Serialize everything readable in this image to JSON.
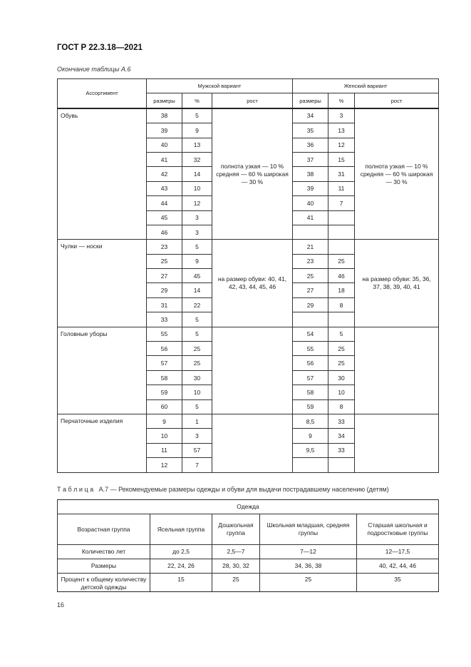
{
  "header": "ГОСТ Р 22.3.18—2021",
  "table_a6": {
    "caption": "Окончание таблицы А.6",
    "col_assortment": "Ассортимент",
    "male": "Мужской вариант",
    "female": "Женский вариант",
    "sub": [
      "размеры",
      "%",
      "рост",
      "размеры",
      "%",
      "рост"
    ],
    "groups": [
      {
        "name": "Обувь",
        "male_rost": "полнота узкая — 10 % средняя — 60 % широкая — 30 %",
        "female_rost": "полнота узкая — 10 % средняя — 60 % широкая — 30 %",
        "rows": [
          [
            "38",
            "5",
            "34",
            "3"
          ],
          [
            "39",
            "9",
            "35",
            "13"
          ],
          [
            "40",
            "13",
            "36",
            "12"
          ],
          [
            "41",
            "32",
            "37",
            "15"
          ],
          [
            "42",
            "14",
            "38",
            "31"
          ],
          [
            "43",
            "10",
            "39",
            "11"
          ],
          [
            "44",
            "12",
            "40",
            "7"
          ],
          [
            "45",
            "3",
            "41",
            ""
          ],
          [
            "46",
            "3",
            "",
            ""
          ]
        ]
      },
      {
        "name": "Чулки — носки",
        "male_rost": "на размер обуви: 40, 41, 42, 43, 44, 45, 46",
        "female_rost": "на размер обуви: 35, 36, 37, 38, 39, 40, 41",
        "rows": [
          [
            "23",
            "5",
            "21",
            ""
          ],
          [
            "25",
            "9",
            "23",
            "25"
          ],
          [
            "27",
            "45",
            "25",
            "46"
          ],
          [
            "29",
            "14",
            "27",
            "18"
          ],
          [
            "31",
            "22",
            "29",
            "8"
          ],
          [
            "33",
            "5",
            "",
            ""
          ]
        ]
      },
      {
        "name": "Головные уборы",
        "male_rost": "",
        "female_rost": "",
        "rows": [
          [
            "55",
            "5",
            "54",
            "5"
          ],
          [
            "56",
            "25",
            "55",
            "25"
          ],
          [
            "57",
            "25",
            "56",
            "25"
          ],
          [
            "58",
            "30",
            "57",
            "30"
          ],
          [
            "59",
            "10",
            "58",
            "10"
          ],
          [
            "60",
            "5",
            "59",
            "8"
          ]
        ]
      },
      {
        "name": "Перчаточные изделия",
        "male_rost": "",
        "female_rost": "",
        "rows": [
          [
            "9",
            "1",
            "8,5",
            "33"
          ],
          [
            "10",
            "3",
            "9",
            "34"
          ],
          [
            "11",
            "57",
            "9,5",
            "33"
          ],
          [
            "12",
            "7",
            "",
            ""
          ]
        ]
      }
    ]
  },
  "table_a7": {
    "caption": "Т а б л и ц а   А.7 — Рекомендуемые размеры одежды и обуви для выдачи пострадавшему населению (детям)",
    "section": "Одежда",
    "rows": [
      [
        "Возрастная группа",
        "Ясельная группа",
        "Дошкольная группа",
        "Школьная младшая, средняя группы",
        "Старшая школьная и подростковые группы"
      ],
      [
        "Количество лет",
        "до 2,5",
        "2,5—7",
        "7—12",
        "12—17,5"
      ],
      [
        "Размеры",
        "22, 24, 26",
        "28, 30, 32",
        "34, 36, 38",
        "40, 42, 44, 46"
      ],
      [
        "Процент к общему коли­честву детской одежды",
        "15",
        "25",
        "25",
        "35"
      ]
    ]
  },
  "page_number": "16"
}
